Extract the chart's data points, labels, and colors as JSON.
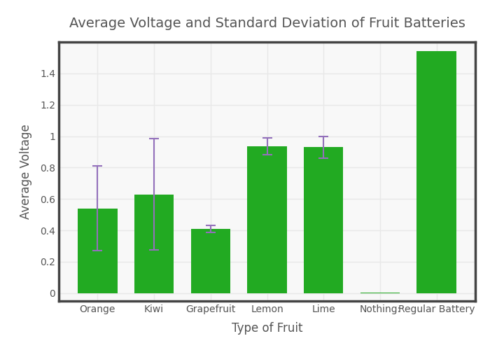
{
  "categories": [
    "Orange",
    "Kiwi",
    "Grapefruit",
    "Lemon",
    "Lime",
    "Nothing:",
    "Regular Battery"
  ],
  "values": [
    0.54,
    0.63,
    0.41,
    0.935,
    0.93,
    0.005,
    1.54
  ],
  "errors": [
    0.27,
    0.355,
    0.022,
    0.055,
    0.07,
    0.0,
    0.0
  ],
  "bar_color": "#22aa22",
  "error_color": "#9370bb",
  "title": "Average Voltage and Standard Deviation of Fruit Batteries",
  "xlabel": "Type of Fruit",
  "ylabel": "Average Voltage",
  "title_fontsize": 14,
  "label_fontsize": 12,
  "tick_fontsize": 10,
  "ylim": [
    -0.05,
    1.6
  ],
  "yticks": [
    0,
    0.2,
    0.4,
    0.6,
    0.8,
    1.0,
    1.2,
    1.4
  ],
  "fig_bg_color": "#ffffff",
  "plot_bg_color": "#f8f8f8",
  "grid_color": "#e8e8e8",
  "border_color": "#444444",
  "text_color": "#555555"
}
